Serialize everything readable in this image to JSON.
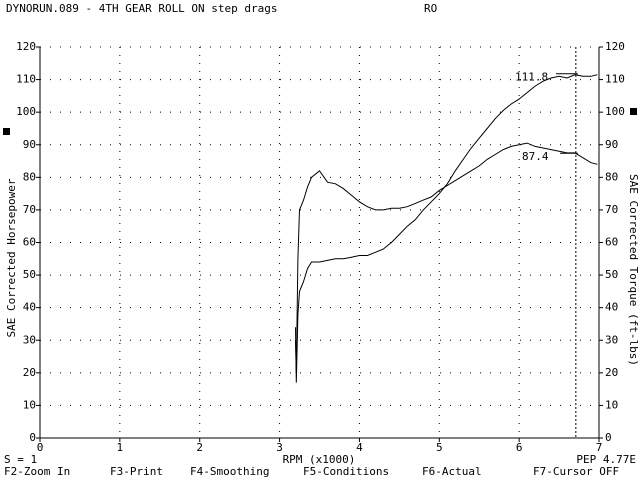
{
  "header": {
    "title": "DYNORUN.089 - 4TH GEAR ROLL ON step drags",
    "operator": "RO"
  },
  "chart_data": {
    "type": "line",
    "xlabel": "RPM (x1000)",
    "ylabel": "SAE Corrected Horsepower",
    "y2label": "SAE Corrected Torque (ft-lbs)",
    "x": [
      3.2,
      3.21,
      3.23,
      3.25,
      3.3,
      3.35,
      3.4,
      3.5,
      3.6,
      3.7,
      3.8,
      3.9,
      4.0,
      4.1,
      4.2,
      4.3,
      4.4,
      4.5,
      4.6,
      4.7,
      4.8,
      4.9,
      5.0,
      5.1,
      5.2,
      5.3,
      5.4,
      5.5,
      5.6,
      5.7,
      5.8,
      5.9,
      6.0,
      6.1,
      6.2,
      6.3,
      6.4,
      6.5,
      6.6,
      6.7,
      6.8,
      6.9,
      6.98
    ],
    "series": [
      {
        "name": "Horsepower",
        "color": "#000000",
        "values": [
          34,
          17,
          38,
          45,
          48,
          52,
          54,
          54,
          54.5,
          55,
          55,
          55.5,
          56,
          56,
          57,
          58,
          60,
          62.5,
          65,
          67,
          70,
          72.5,
          75,
          78,
          82,
          85.5,
          89,
          92,
          95,
          98,
          100.5,
          102.5,
          104,
          106,
          108,
          109.5,
          110.5,
          111,
          110.5,
          111.5,
          111,
          111,
          111.5
        ]
      },
      {
        "name": "Torque",
        "color": "#000000",
        "axis": "y2",
        "values": [
          30,
          20,
          55,
          70,
          73,
          77,
          80,
          82,
          78.5,
          78,
          76.5,
          74.5,
          72.5,
          71,
          70,
          70,
          70.5,
          70.5,
          71,
          72,
          73,
          74,
          76,
          77.5,
          79,
          80.5,
          82,
          83.5,
          85.5,
          87,
          88.5,
          89.5,
          90,
          90.5,
          89.5,
          89,
          88.5,
          88,
          87.5,
          87.5,
          86,
          84.5,
          84
        ]
      }
    ],
    "annotations": [
      111.8,
      87.4
    ],
    "cursor_x": 6.71,
    "xlim": [
      0,
      7
    ],
    "xticks": [
      0,
      1,
      2,
      3,
      4,
      5,
      6,
      7
    ],
    "ylim": [
      0,
      120
    ],
    "yticks": [
      0,
      10,
      20,
      30,
      40,
      50,
      60,
      70,
      80,
      90,
      100,
      110,
      120
    ],
    "y2lim": [
      0,
      120
    ],
    "y2ticks": [
      0,
      10,
      20,
      30,
      40,
      50,
      60,
      70,
      80,
      90,
      100,
      110,
      120
    ],
    "grid": true
  },
  "status": {
    "smoothing": "S = 1",
    "pep": "PEP 4.77E"
  },
  "footer": {
    "keys": [
      "F2-Zoom In",
      "F3-Print",
      "F4-Smoothing",
      "F5-Conditions",
      "F6-Actual",
      "F7-Cursor OFF"
    ]
  }
}
